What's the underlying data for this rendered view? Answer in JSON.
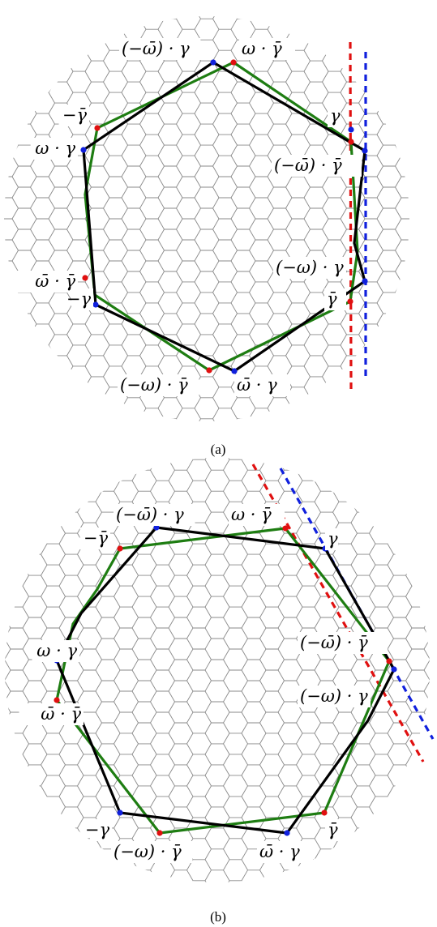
{
  "captions": {
    "a": "(a)",
    "b": "(b)"
  },
  "colors": {
    "lattice": "#8a8a8a",
    "black_polygon": "#000000",
    "green_polygon": "#1e7d12",
    "red_marker": "#e01010",
    "blue_marker": "#1020dd",
    "red_line": "#e01010",
    "blue_line": "#1020dd"
  },
  "panels": [
    {
      "id": "a",
      "labels": [
        "(−ω̄) · γ",
        "ω · γ̄",
        "γ",
        "(−ω̄) · γ̄",
        "(−ω) · γ",
        "γ̄",
        "ω̄ · γ",
        "(−ω) · γ̄",
        "−γ",
        "ω̄ · γ̄",
        "ω · γ",
        "−γ̄"
      ]
    },
    {
      "id": "b",
      "labels": [
        "(−ω̄) · γ",
        "ω · γ̄",
        "γ",
        "(−ω̄) · γ̄",
        "(−ω) · γ",
        "γ̄",
        "ω̄ · γ",
        "(−ω) · γ̄",
        "−γ",
        "ω̄ · γ̄",
        "ω · γ",
        "−γ̄"
      ]
    }
  ]
}
